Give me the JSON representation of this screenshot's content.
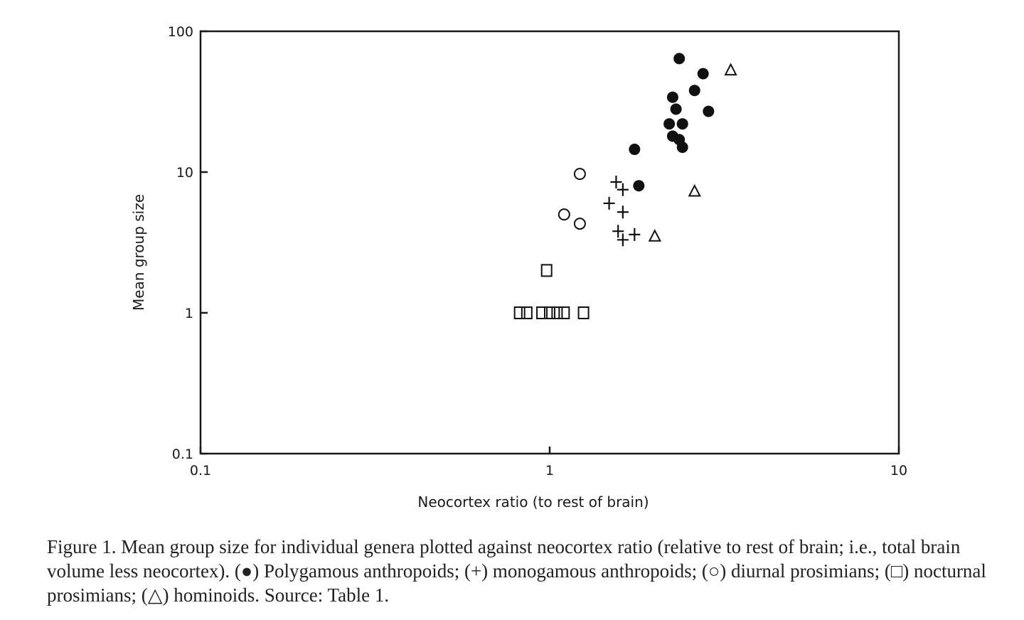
{
  "chart_data": {
    "type": "scatter",
    "xlabel": "Neocortex ratio (to rest of brain)",
    "ylabel": "Mean group size",
    "xscale": "log",
    "yscale": "log",
    "xlim": [
      0.1,
      10
    ],
    "ylim": [
      0.1,
      100
    ],
    "x_ticks": [
      0.1,
      1,
      10
    ],
    "x_tick_labels": [
      "0.1",
      "1",
      "10"
    ],
    "y_ticks": [
      0.1,
      1,
      10,
      100
    ],
    "y_tick_labels": [
      "0.1",
      "1",
      "10",
      "100"
    ],
    "grid": false,
    "legend": "in caption",
    "series": [
      {
        "marker": "filled-circle",
        "points": [
          [
            2.35,
            64
          ],
          [
            2.75,
            50
          ],
          [
            2.6,
            38
          ],
          [
            2.25,
            34
          ],
          [
            2.3,
            28
          ],
          [
            2.2,
            22
          ],
          [
            2.4,
            22
          ],
          [
            2.85,
            27
          ],
          [
            2.25,
            18
          ],
          [
            2.35,
            17
          ],
          [
            2.4,
            15
          ],
          [
            1.75,
            14.5
          ],
          [
            1.8,
            8
          ]
        ]
      },
      {
        "marker": "plus",
        "points": [
          [
            1.55,
            8.5
          ],
          [
            1.62,
            7.5
          ],
          [
            1.48,
            6
          ],
          [
            1.62,
            5.2
          ],
          [
            1.57,
            3.8
          ],
          [
            1.62,
            3.3
          ],
          [
            1.75,
            3.6
          ]
        ]
      },
      {
        "marker": "open-circle",
        "points": [
          [
            1.22,
            9.7
          ],
          [
            1.1,
            5
          ],
          [
            1.22,
            4.3
          ]
        ]
      },
      {
        "marker": "open-square",
        "points": [
          [
            0.98,
            2
          ],
          [
            0.82,
            1
          ],
          [
            0.86,
            1
          ],
          [
            0.95,
            1
          ],
          [
            1.0,
            1
          ],
          [
            1.05,
            1
          ],
          [
            1.1,
            1
          ],
          [
            1.25,
            1
          ]
        ]
      },
      {
        "marker": "open-triangle",
        "points": [
          [
            3.3,
            53
          ],
          [
            2.6,
            7.3
          ],
          [
            2.0,
            3.5
          ]
        ]
      }
    ]
  },
  "caption": {
    "text": "Figure 1. Mean group size for individual genera plotted against neocortex ratio (relative to rest of brain; i.e., total brain volume less neocortex). (●) Polygamous anthropoids; (+) monogamous anthropoids; (○) diurnal prosimians; (□) nocturnal prosimians; (△) hominoids. Source: Table 1."
  }
}
